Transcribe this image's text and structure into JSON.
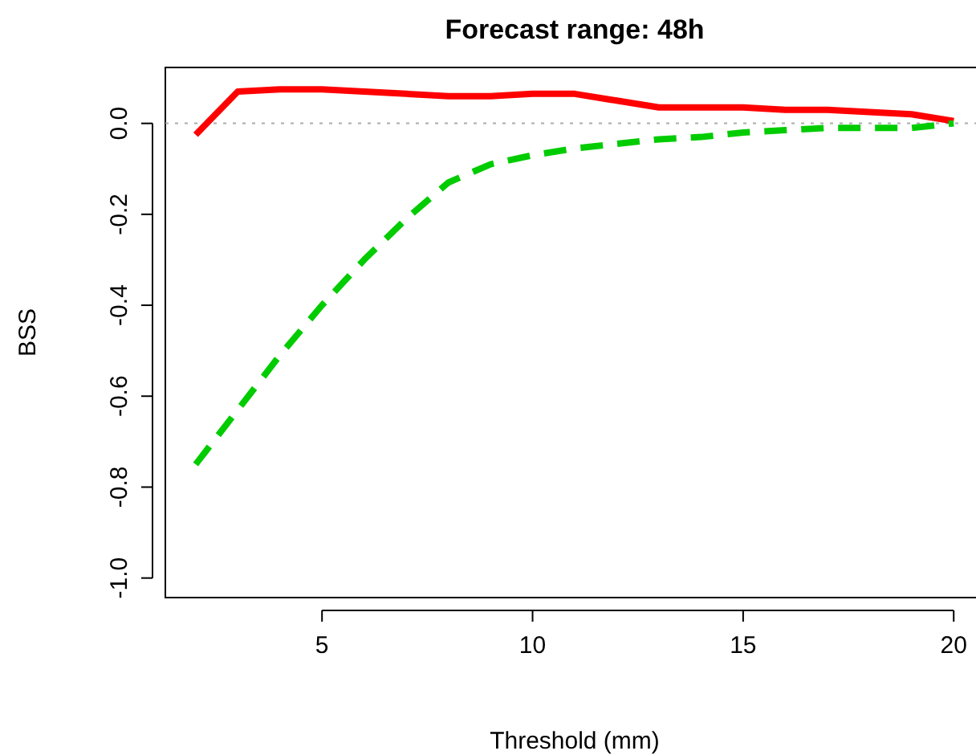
{
  "chart_data": {
    "type": "line",
    "title": "Forecast range: 48h",
    "xlabel": "Threshold (mm)",
    "ylabel": "BSS",
    "x": [
      2,
      3,
      4,
      5,
      6,
      7,
      8,
      9,
      10,
      11,
      12,
      13,
      14,
      15,
      16,
      17,
      18,
      19,
      20
    ],
    "series": [
      {
        "color": "#ff0000",
        "line_style": "solid",
        "values": [
          -0.025,
          0.07,
          0.075,
          0.075,
          0.07,
          0.065,
          0.06,
          0.06,
          0.065,
          0.065,
          0.05,
          0.035,
          0.035,
          0.035,
          0.03,
          0.03,
          0.025,
          0.02,
          0.005
        ]
      },
      {
        "color": "#00cc00",
        "line_style": "dashed",
        "values": [
          -0.75,
          -0.63,
          -0.51,
          -0.4,
          -0.3,
          -0.21,
          -0.13,
          -0.09,
          -0.07,
          -0.055,
          -0.045,
          -0.035,
          -0.03,
          -0.02,
          -0.015,
          -0.01,
          -0.01,
          -0.01,
          0
        ]
      }
    ],
    "xlim": [
      1.28,
      20.72
    ],
    "ylim": [
      -1.043,
      0.123
    ],
    "xticks": [
      5,
      10,
      15,
      20
    ],
    "yticks": [
      {
        "value": -1,
        "label": "-1.0"
      },
      {
        "value": -0.8,
        "label": "-0.8"
      },
      {
        "value": -0.6,
        "label": "-0.6"
      },
      {
        "value": -0.4,
        "label": "-0.4"
      },
      {
        "value": -0.2,
        "label": "-0.2"
      },
      {
        "value": 0,
        "label": "0.0"
      }
    ],
    "ref_lines": [
      {
        "axis": "y",
        "value": 0,
        "color": "#aaaaaa",
        "line_style": "dotted"
      }
    ],
    "marker": "none"
  }
}
